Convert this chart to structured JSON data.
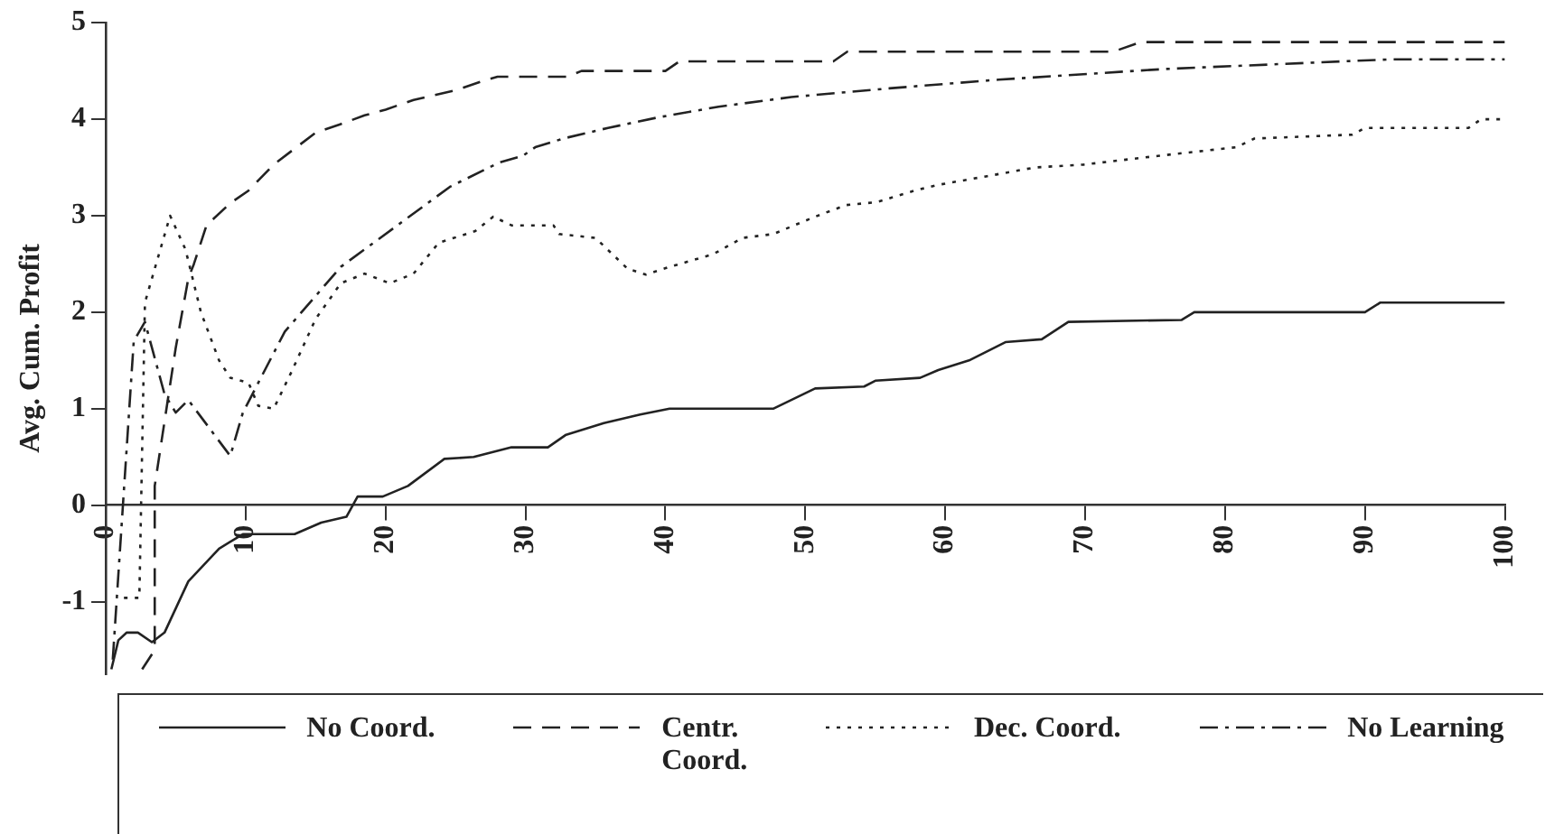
{
  "chart_data": {
    "type": "line",
    "ylabel": "Avg. Cum. Profit",
    "xlim": [
      0,
      100
    ],
    "xticks": [
      0,
      10,
      20,
      30,
      40,
      50,
      60,
      70,
      80,
      90,
      100
    ],
    "ylim": [
      -1.75,
      5
    ],
    "yticks": [
      -1,
      0,
      1,
      2,
      3,
      4,
      5
    ],
    "grid": false,
    "legend": "bottom",
    "marker": "none",
    "series": [
      {
        "name": "No Coord.",
        "color": "#222222",
        "line_style": "solid",
        "x": [
          0.4,
          0.9,
          1.5,
          2.3,
          3.3,
          4.2,
          5.9,
          8.1,
          9.8,
          11.6,
          13.5,
          15.4,
          17.2,
          18,
          19.8,
          21.6,
          24.2,
          26.3,
          29,
          31.6,
          32.9,
          35.6,
          38.2,
          40.3,
          47.7,
          50.7,
          54.2,
          55,
          58.2,
          59.5,
          61.7,
          64.3,
          66.9,
          68.8,
          76.9,
          77.8,
          90,
          91.1,
          100
        ],
        "values": [
          -1.7,
          -1.4,
          -1.32,
          -1.32,
          -1.42,
          -1.32,
          -0.79,
          -0.45,
          -0.3,
          -0.3,
          -0.3,
          -0.18,
          -0.12,
          0.09,
          0.09,
          0.2,
          0.48,
          0.5,
          0.6,
          0.6,
          0.73,
          0.85,
          0.94,
          1.0,
          1.0,
          1.21,
          1.23,
          1.29,
          1.32,
          1.4,
          1.5,
          1.69,
          1.72,
          1.9,
          1.92,
          2.0,
          2.0,
          2.1,
          2.1
        ]
      },
      {
        "name": "Centr.\nCoord.",
        "color": "#222222",
        "line_style": "dashed",
        "x": [
          2.6,
          3.5,
          3.5,
          5,
          5.9,
          6.3,
          7.2,
          8.9,
          10.2,
          12,
          15,
          16.8,
          18.5,
          20,
          22,
          25,
          27,
          28,
          33,
          34,
          40,
          41,
          52,
          53,
          72,
          74,
          100
        ],
        "values": [
          -1.7,
          -1.5,
          0.2,
          1.63,
          2.35,
          2.5,
          2.9,
          3.13,
          3.26,
          3.53,
          3.86,
          3.95,
          4.04,
          4.1,
          4.2,
          4.3,
          4.4,
          4.44,
          4.44,
          4.5,
          4.5,
          4.6,
          4.6,
          4.7,
          4.7,
          4.8,
          4.8
        ]
      },
      {
        "name": "Dec. Coord.",
        "color": "#222222",
        "line_style": "dotted",
        "x": [
          1.3,
          2.4,
          2.8,
          4.6,
          5.7,
          6.8,
          8.1,
          8.9,
          10.2,
          10.9,
          12,
          13.3,
          15,
          16.8,
          18.5,
          20.3,
          22,
          23.8,
          26.4,
          27.7,
          29,
          32,
          32.4,
          35,
          37.3,
          38.6,
          40.3,
          43.4,
          45.5,
          47.7,
          50.7,
          52.9,
          55.1,
          57.8,
          59.5,
          63,
          66.4,
          69.9,
          75.2,
          80.8,
          82.1,
          89.1,
          90,
          97.4,
          98.3,
          100
        ],
        "values": [
          -0.96,
          -0.96,
          2.1,
          3.0,
          2.65,
          2.0,
          1.5,
          1.32,
          1.27,
          1.03,
          1.0,
          1.39,
          1.93,
          2.3,
          2.4,
          2.3,
          2.4,
          2.72,
          2.84,
          2.99,
          2.9,
          2.9,
          2.81,
          2.77,
          2.45,
          2.39,
          2.47,
          2.6,
          2.77,
          2.81,
          2.99,
          3.11,
          3.14,
          3.26,
          3.32,
          3.41,
          3.5,
          3.53,
          3.62,
          3.71,
          3.8,
          3.84,
          3.91,
          3.91,
          4.0,
          4.0
        ]
      },
      {
        "name": "No Learning",
        "color": "#222222",
        "line_style": "dashdot",
        "x": [
          0.5,
          1,
          2,
          2.8,
          4.2,
          5,
          5.9,
          8.9,
          9.8,
          12.8,
          16.8,
          24.6,
          28.1,
          29.8,
          30.7,
          32.7,
          35.9,
          39.5,
          43.8,
          49,
          56,
          63.8,
          75.6,
          91.7,
          100
        ],
        "values": [
          -1.6,
          -0.5,
          1.7,
          1.9,
          1.15,
          0.96,
          1.09,
          0.51,
          0.96,
          1.8,
          2.47,
          3.3,
          3.55,
          3.62,
          3.71,
          3.8,
          3.91,
          4.02,
          4.13,
          4.23,
          4.32,
          4.41,
          4.52,
          4.62,
          4.62
        ]
      }
    ]
  }
}
